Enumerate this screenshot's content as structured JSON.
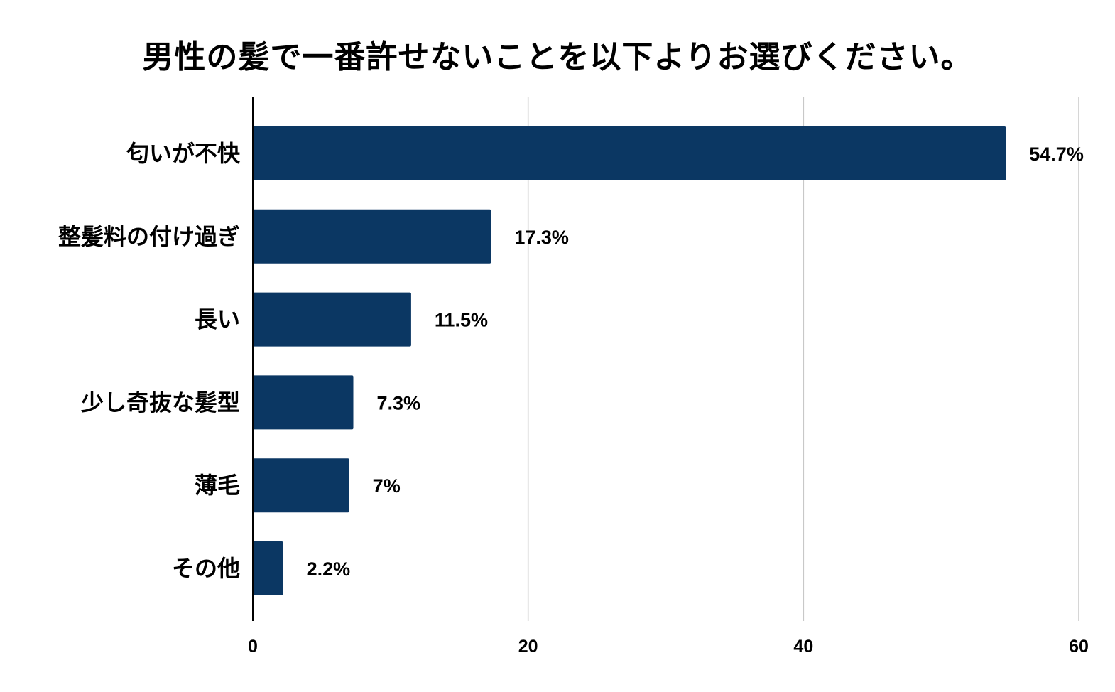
{
  "chart_data": {
    "type": "bar",
    "orientation": "horizontal",
    "title": "男性の髪で一番許せないことを以下よりお選びください。",
    "categories": [
      "匂いが不快",
      "整髪料の付け過ぎ",
      "長い",
      "少し奇抜な髪型",
      "薄毛",
      "その他"
    ],
    "values": [
      54.7,
      17.3,
      11.5,
      7.3,
      7,
      2.2
    ],
    "data_labels": [
      "54.7%",
      "17.3%",
      "11.5%",
      "7.3%",
      "7%",
      "2.2%"
    ],
    "xlim": [
      0,
      60
    ],
    "xticks": [
      0,
      20,
      40,
      60
    ],
    "xlabel": "",
    "ylabel": "",
    "grid": "vertical",
    "legend": "none",
    "colors": {
      "bar": "#0b3763",
      "grid": "#c8c8c8",
      "axis": "#000000"
    }
  }
}
